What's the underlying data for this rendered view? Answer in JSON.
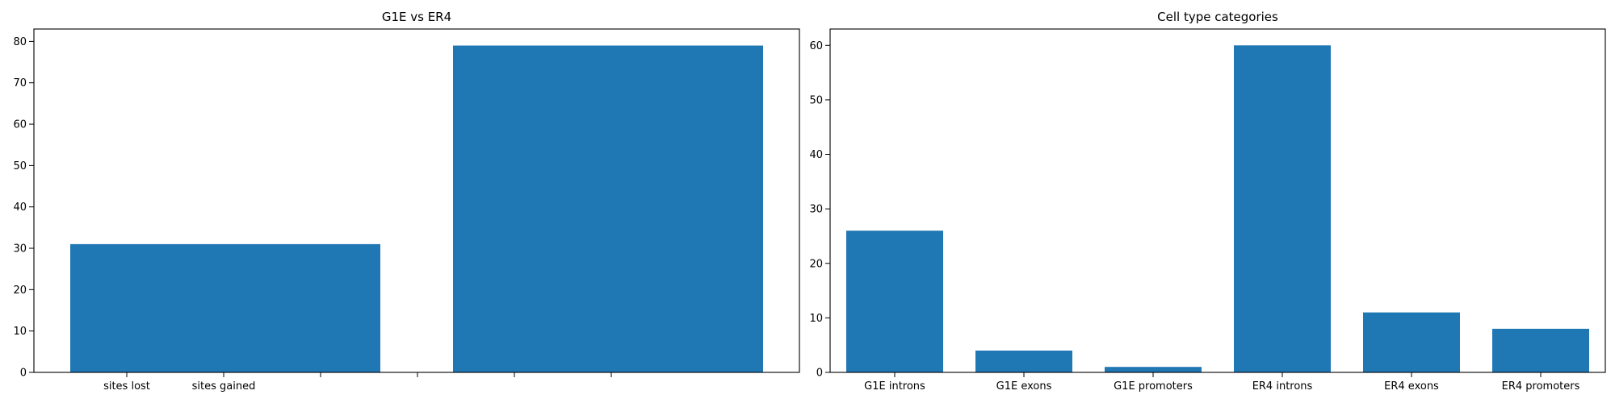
{
  "chart_data": [
    {
      "type": "bar",
      "title": "G1E vs ER4",
      "xlabel": "",
      "ylabel": "",
      "categories": [
        "sites lost",
        "sites gained"
      ],
      "values": [
        31,
        79
      ],
      "extra_x_ticks": 4,
      "ylim": [
        0,
        83
      ],
      "yticks": [
        0,
        10,
        20,
        30,
        40,
        50,
        60,
        70,
        80
      ],
      "grid": false,
      "color": "#1f77b4"
    },
    {
      "type": "bar",
      "title": "Cell type categories",
      "xlabel": "",
      "ylabel": "",
      "categories": [
        "G1E introns",
        "G1E exons",
        "G1E promoters",
        "ER4 introns",
        "ER4 exons",
        "ER4 promoters"
      ],
      "values": [
        26,
        4,
        1,
        60,
        11,
        8
      ],
      "ylim": [
        0,
        63
      ],
      "yticks": [
        0,
        10,
        20,
        30,
        40,
        50,
        60
      ],
      "grid": false,
      "color": "#1f77b4"
    }
  ]
}
